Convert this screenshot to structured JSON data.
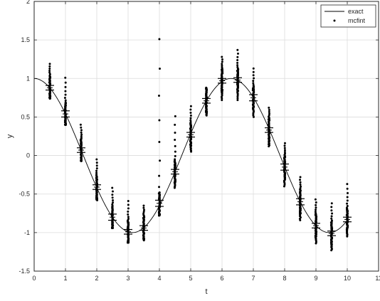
{
  "chart_data": {
    "type": "scatter",
    "title": "",
    "xlabel": "t",
    "ylabel": "y",
    "xlim": [
      0,
      11
    ],
    "ylim": [
      -1.5,
      2
    ],
    "grid": true,
    "legend_position": "top-right",
    "x_ticks": [
      0,
      1,
      2,
      3,
      4,
      5,
      6,
      7,
      8,
      9,
      10,
      11
    ],
    "x_tick_labels": [
      "0",
      "1",
      "2",
      "3",
      "4",
      "5",
      "6",
      "7",
      "8",
      "9",
      "10",
      "11"
    ],
    "y_ticks": [
      -1.5,
      -1,
      -0.5,
      0,
      0.5,
      1,
      1.5,
      2
    ],
    "y_tick_labels": [
      "-1.5",
      "-1",
      "-0.5",
      "0",
      "0.5",
      "1",
      "1.5",
      "2"
    ],
    "series": [
      {
        "name": "exact",
        "kind": "line",
        "function": "cos(t)",
        "x_range": [
          0,
          10
        ],
        "color": "#000000"
      },
      {
        "name": "mcfint",
        "kind": "points",
        "color": "#000000",
        "groups": [
          {
            "t": 0.5,
            "mean": 0.88,
            "low": 0.78,
            "high": 1.19,
            "err": 0.03
          },
          {
            "t": 1.0,
            "mean": 0.54,
            "low": 0.4,
            "high": 1.01,
            "err": 0.04
          },
          {
            "t": 1.5,
            "mean": 0.07,
            "low": -0.07,
            "high": 0.4,
            "err": 0.03
          },
          {
            "t": 2.0,
            "mean": -0.41,
            "low": -0.58,
            "high": -0.05,
            "err": 0.03
          },
          {
            "t": 2.5,
            "mean": -0.8,
            "low": -0.94,
            "high": -0.42,
            "err": 0.04
          },
          {
            "t": 3.0,
            "mean": -0.99,
            "low": -1.13,
            "high": -0.59,
            "err": 0.03
          },
          {
            "t": 3.5,
            "mean": -0.94,
            "low": -1.1,
            "high": -0.65,
            "err": 0.03
          },
          {
            "t": 4.0,
            "mean": -0.62,
            "low": -0.78,
            "high": 1.51,
            "err": 0.04
          },
          {
            "t": 4.5,
            "mean": -0.21,
            "low": -0.42,
            "high": 0.51,
            "err": 0.03
          },
          {
            "t": 5.0,
            "mean": 0.27,
            "low": 0.05,
            "high": 0.64,
            "err": 0.03
          },
          {
            "t": 5.5,
            "mean": 0.71,
            "low": 0.52,
            "high": 0.88,
            "err": 0.03
          },
          {
            "t": 6.0,
            "mean": 0.97,
            "low": 0.72,
            "high": 1.28,
            "err": 0.03
          },
          {
            "t": 6.5,
            "mean": 0.98,
            "low": 0.72,
            "high": 1.37,
            "err": 0.03
          },
          {
            "t": 7.0,
            "mean": 0.75,
            "low": 0.5,
            "high": 1.13,
            "err": 0.04
          },
          {
            "t": 7.5,
            "mean": 0.33,
            "low": 0.12,
            "high": 0.62,
            "err": 0.03
          },
          {
            "t": 8.0,
            "mean": -0.15,
            "low": -0.4,
            "high": 0.16,
            "err": 0.04
          },
          {
            "t": 8.5,
            "mean": -0.6,
            "low": -0.84,
            "high": -0.28,
            "err": 0.04
          },
          {
            "t": 9.0,
            "mean": -0.91,
            "low": -1.14,
            "high": -0.57,
            "err": 0.03
          },
          {
            "t": 9.5,
            "mean": -1.01,
            "low": -1.23,
            "high": -0.62,
            "err": 0.03
          },
          {
            "t": 10.0,
            "mean": -0.83,
            "low": -1.05,
            "high": -0.37,
            "err": 0.03
          }
        ]
      }
    ]
  },
  "legend": {
    "items": [
      {
        "label": "exact",
        "marker": "line"
      },
      {
        "label": "mcfint",
        "marker": "dot"
      }
    ]
  },
  "colors": {
    "axis": "#262626",
    "grid": "#dcdcdc",
    "data": "#000000",
    "background": "#ffffff"
  }
}
